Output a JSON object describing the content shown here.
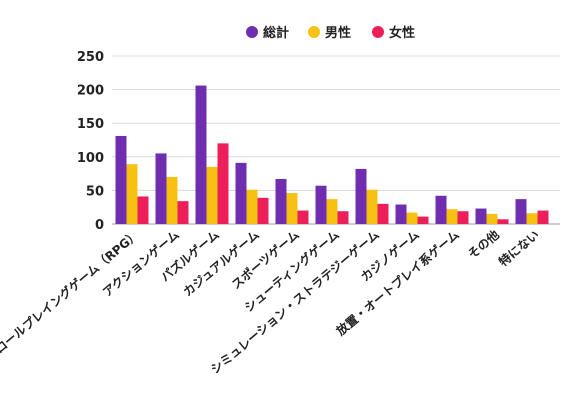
{
  "chart_data": {
    "type": "bar",
    "title": "",
    "xlabel": "",
    "ylabel": "",
    "ylim": [
      0,
      250
    ],
    "yticks": [
      0,
      50,
      100,
      150,
      200,
      250
    ],
    "grid": true,
    "legend_position": "top-center",
    "categories": [
      "ロールプレイングゲーム（RPG）",
      "アクションゲーム",
      "パズルゲーム",
      "カジュアルゲーム",
      "スポーツゲーム",
      "シューティングゲーム",
      "シミュレーション・ストラテジーゲーム",
      "カジノゲーム",
      "放置・オートプレイ系ゲーム",
      "その他",
      "特にない"
    ],
    "series": [
      {
        "name": "総計",
        "color": "#6f2db0",
        "values": [
          131,
          105,
          206,
          91,
          67,
          57,
          82,
          29,
          42,
          23,
          37
        ]
      },
      {
        "name": "男性",
        "color": "#f5c211",
        "values": [
          89,
          70,
          85,
          51,
          46,
          37,
          51,
          17,
          22,
          15,
          16
        ]
      },
      {
        "name": "女性",
        "color": "#ec1f5b",
        "values": [
          41,
          34,
          120,
          39,
          20,
          19,
          30,
          11,
          19,
          7,
          20
        ]
      }
    ]
  }
}
